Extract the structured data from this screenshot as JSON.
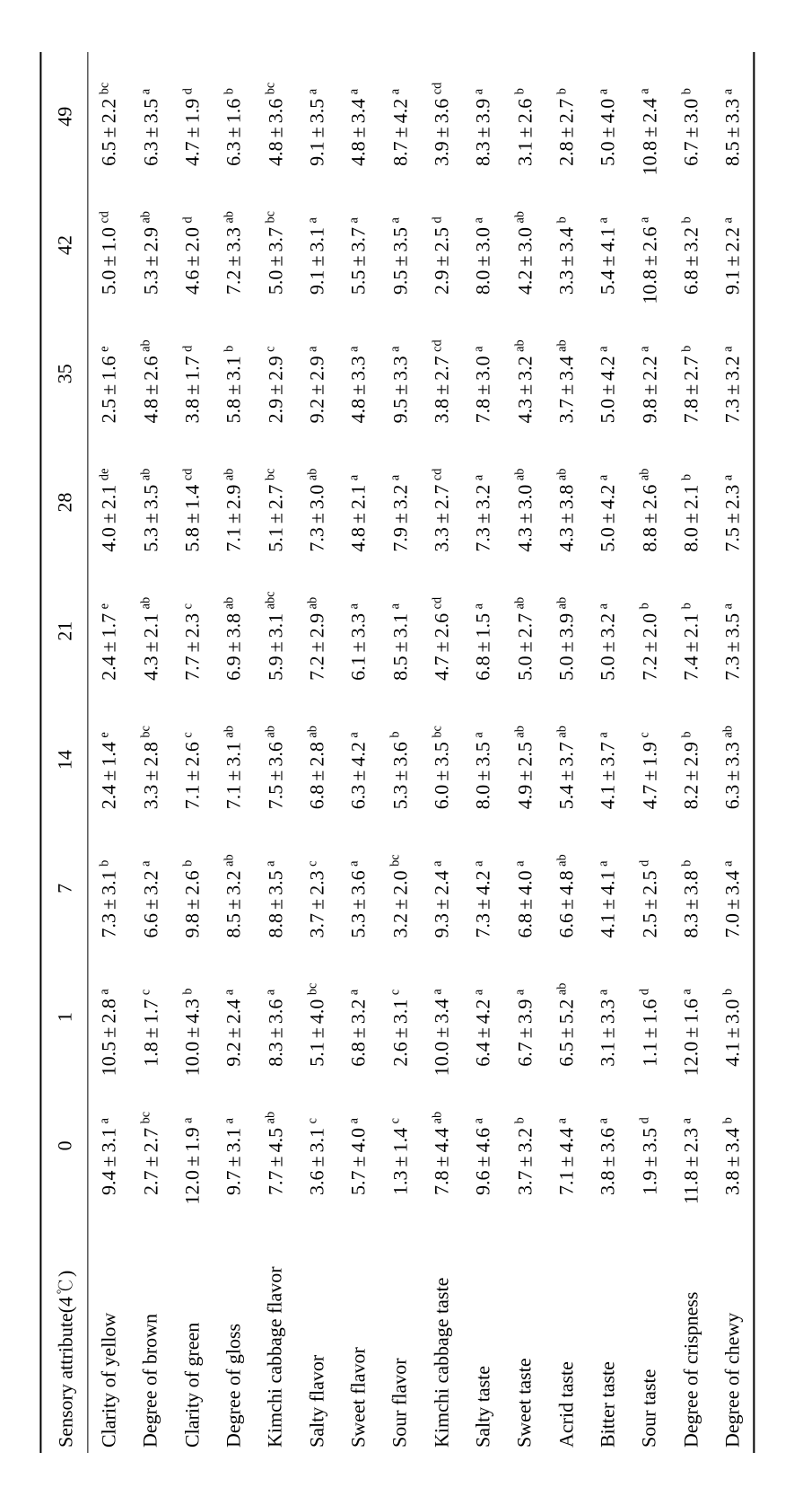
{
  "table": {
    "header_label": "Sensory attribute(4℃)",
    "days": [
      "0",
      "1",
      "7",
      "14",
      "21",
      "28",
      "35",
      "42",
      "49"
    ],
    "rows": [
      {
        "label": "Clarity of yellow",
        "cells": [
          {
            "v": "9.4",
            "s": "3.1",
            "sup": "a"
          },
          {
            "v": "10.5",
            "s": "2.8",
            "sup": "a"
          },
          {
            "v": "7.3",
            "s": "3.1",
            "sup": "b"
          },
          {
            "v": "2.4",
            "s": "1.4",
            "sup": "e"
          },
          {
            "v": "2.4",
            "s": "1.7",
            "sup": "e"
          },
          {
            "v": "4.0",
            "s": "2.1",
            "sup": "de"
          },
          {
            "v": "2.5",
            "s": "1.6",
            "sup": "e"
          },
          {
            "v": "5.0",
            "s": "1.0",
            "sup": "cd"
          },
          {
            "v": "6.5",
            "s": "2.2",
            "sup": "bc"
          }
        ]
      },
      {
        "label": "Degree of brown",
        "cells": [
          {
            "v": "2.7",
            "s": "2.7",
            "sup": "bc"
          },
          {
            "v": "1.8",
            "s": "1.7",
            "sup": "c"
          },
          {
            "v": "6.6",
            "s": "3.2",
            "sup": "a"
          },
          {
            "v": "3.3",
            "s": "2.8",
            "sup": "bc"
          },
          {
            "v": "4.3",
            "s": "2.1",
            "sup": "ab"
          },
          {
            "v": "5.3",
            "s": "3.5",
            "sup": "ab"
          },
          {
            "v": "4.8",
            "s": "2.6",
            "sup": "ab"
          },
          {
            "v": "5.3",
            "s": "2.9",
            "sup": "ab"
          },
          {
            "v": "6.3",
            "s": "3.5",
            "sup": "a"
          }
        ]
      },
      {
        "label": "Clarity of green",
        "cells": [
          {
            "v": "12.0",
            "s": "1.9",
            "sup": "a"
          },
          {
            "v": "10.0",
            "s": "4.3",
            "sup": "b"
          },
          {
            "v": "9.8",
            "s": "2.6",
            "sup": "b"
          },
          {
            "v": "7.1",
            "s": "2.6",
            "sup": "c"
          },
          {
            "v": "7.7",
            "s": "2.3",
            "sup": "c"
          },
          {
            "v": "5.8",
            "s": "1.4",
            "sup": "cd"
          },
          {
            "v": "3.8",
            "s": "1.7",
            "sup": "d"
          },
          {
            "v": "4.6",
            "s": "2.0",
            "sup": "d"
          },
          {
            "v": "4.7",
            "s": "1.9",
            "sup": "d"
          }
        ]
      },
      {
        "label": "Degree of gloss",
        "cells": [
          {
            "v": "9.7",
            "s": "3.1",
            "sup": "a"
          },
          {
            "v": "9.2",
            "s": "2.4",
            "sup": "a"
          },
          {
            "v": "8.5",
            "s": "3.2",
            "sup": "ab"
          },
          {
            "v": "7.1",
            "s": "3.1",
            "sup": "ab"
          },
          {
            "v": "6.9",
            "s": "3.8",
            "sup": "ab"
          },
          {
            "v": "7.1",
            "s": "2.9",
            "sup": "ab"
          },
          {
            "v": "5.8",
            "s": "3.1",
            "sup": "b"
          },
          {
            "v": "7.2",
            "s": "3.3",
            "sup": "ab"
          },
          {
            "v": "6.3",
            "s": "1.6",
            "sup": "b"
          }
        ]
      },
      {
        "label": "Kimchi cabbage flavor",
        "cells": [
          {
            "v": "7.7",
            "s": "4.5",
            "sup": "ab"
          },
          {
            "v": "8.3",
            "s": "3.6",
            "sup": "a"
          },
          {
            "v": "8.8",
            "s": "3.5",
            "sup": "a"
          },
          {
            "v": "7.5",
            "s": "3.6",
            "sup": "ab"
          },
          {
            "v": "5.9",
            "s": "3.1",
            "sup": "abc"
          },
          {
            "v": "5.1",
            "s": "2.7",
            "sup": "bc"
          },
          {
            "v": "2.9",
            "s": "2.9",
            "sup": "c"
          },
          {
            "v": "5.0",
            "s": "3.7",
            "sup": "bc"
          },
          {
            "v": "4.8",
            "s": "3.6",
            "sup": "bc"
          }
        ]
      },
      {
        "label": "Salty flavor",
        "cells": [
          {
            "v": "3.6",
            "s": "3.1",
            "sup": "c"
          },
          {
            "v": "5.1",
            "s": "4.0",
            "sup": "bc"
          },
          {
            "v": "3.7",
            "s": "2.3",
            "sup": "c"
          },
          {
            "v": "6.8",
            "s": "2.8",
            "sup": "ab"
          },
          {
            "v": "7.2",
            "s": "2.9",
            "sup": "ab"
          },
          {
            "v": "7.3",
            "s": "3.0",
            "sup": "ab"
          },
          {
            "v": "9.2",
            "s": "2.9",
            "sup": "a"
          },
          {
            "v": "9.1",
            "s": "3.1",
            "sup": "a"
          },
          {
            "v": "9.1",
            "s": "3.5",
            "sup": "a"
          }
        ]
      },
      {
        "label": "Sweet flavor",
        "cells": [
          {
            "v": "5.7",
            "s": "4.0",
            "sup": "a"
          },
          {
            "v": "6.8",
            "s": "3.2",
            "sup": "a"
          },
          {
            "v": "5.3",
            "s": "3.6",
            "sup": "a"
          },
          {
            "v": "6.3",
            "s": "4.2",
            "sup": "a"
          },
          {
            "v": "6.1",
            "s": "3.3",
            "sup": "a"
          },
          {
            "v": "4.8",
            "s": "2.1",
            "sup": "a"
          },
          {
            "v": "4.8",
            "s": "3.3",
            "sup": "a"
          },
          {
            "v": "5.5",
            "s": "3.7",
            "sup": "a"
          },
          {
            "v": "4.8",
            "s": "3.4",
            "sup": "a"
          }
        ]
      },
      {
        "label": "Sour flavor",
        "cells": [
          {
            "v": "1.3",
            "s": "1.4",
            "sup": "c"
          },
          {
            "v": "2.6",
            "s": "3.1",
            "sup": "c"
          },
          {
            "v": "3.2",
            "s": "2.0",
            "sup": "bc"
          },
          {
            "v": "5.3",
            "s": "3.6",
            "sup": "b"
          },
          {
            "v": "8.5",
            "s": "3.1",
            "sup": "a"
          },
          {
            "v": "7.9",
            "s": "3.2",
            "sup": "a"
          },
          {
            "v": "9.5",
            "s": "3.3",
            "sup": "a"
          },
          {
            "v": "9.5",
            "s": "3.5",
            "sup": "a"
          },
          {
            "v": "8.7",
            "s": "4.2",
            "sup": "a"
          }
        ]
      },
      {
        "label": "Kimchi cabbage taste",
        "cells": [
          {
            "v": "7.8",
            "s": "4.4",
            "sup": "ab"
          },
          {
            "v": "10.0",
            "s": "3.4",
            "sup": "a"
          },
          {
            "v": "9.3",
            "s": "2.4",
            "sup": "a"
          },
          {
            "v": "6.0",
            "s": "3.5",
            "sup": "bc"
          },
          {
            "v": "4.7",
            "s": "2.6",
            "sup": "cd"
          },
          {
            "v": "3.3",
            "s": "2.7",
            "sup": "cd"
          },
          {
            "v": "3.8",
            "s": "2.7",
            "sup": "cd"
          },
          {
            "v": "2.9",
            "s": "2.5",
            "sup": "d"
          },
          {
            "v": "3.9",
            "s": "3.6",
            "sup": "cd"
          }
        ]
      },
      {
        "label": "Salty taste",
        "cells": [
          {
            "v": "9.6",
            "s": "4.6",
            "sup": "a"
          },
          {
            "v": "6.4",
            "s": "4.2",
            "sup": "a"
          },
          {
            "v": "7.3",
            "s": "4.2",
            "sup": "a"
          },
          {
            "v": "8.0",
            "s": "3.5",
            "sup": "a"
          },
          {
            "v": "6.8",
            "s": "1.5",
            "sup": "a"
          },
          {
            "v": "7.3",
            "s": "3.2",
            "sup": "a"
          },
          {
            "v": "7.8",
            "s": "3.0",
            "sup": "a"
          },
          {
            "v": "8.0",
            "s": "3.0",
            "sup": "a"
          },
          {
            "v": "8.3",
            "s": "3.9",
            "sup": "a"
          }
        ]
      },
      {
        "label": "Sweet taste",
        "cells": [
          {
            "v": "3.7",
            "s": "3.2",
            "sup": "b"
          },
          {
            "v": "6.7",
            "s": "3.9",
            "sup": "a"
          },
          {
            "v": "6.8",
            "s": "4.0",
            "sup": "a"
          },
          {
            "v": "4.9",
            "s": "2.5",
            "sup": "ab"
          },
          {
            "v": "5.0",
            "s": "2.7",
            "sup": "ab"
          },
          {
            "v": "4.3",
            "s": "3.0",
            "sup": "ab"
          },
          {
            "v": "4.3",
            "s": "3.2",
            "sup": "ab"
          },
          {
            "v": "4.2",
            "s": "3.0",
            "sup": "ab"
          },
          {
            "v": "3.1",
            "s": "2.6",
            "sup": "b"
          }
        ]
      },
      {
        "label": "Acrid taste",
        "cells": [
          {
            "v": "7.1",
            "s": "4.4",
            "sup": "a"
          },
          {
            "v": "6.5",
            "s": "5.2",
            "sup": "ab"
          },
          {
            "v": "6.6",
            "s": "4.8",
            "sup": "ab"
          },
          {
            "v": "5.4",
            "s": "3.7",
            "sup": "ab"
          },
          {
            "v": "5.0",
            "s": "3.9",
            "sup": "ab"
          },
          {
            "v": "4.3",
            "s": "3.8",
            "sup": "ab"
          },
          {
            "v": "3.7",
            "s": "3.4",
            "sup": "ab"
          },
          {
            "v": "3.3",
            "s": "3.4",
            "sup": "b"
          },
          {
            "v": "2.8",
            "s": "2.7",
            "sup": "b"
          }
        ]
      },
      {
        "label": "Bitter taste",
        "cells": [
          {
            "v": "3.8",
            "s": "3.6",
            "sup": "a"
          },
          {
            "v": "3.1",
            "s": "3.3",
            "sup": "a"
          },
          {
            "v": "4.1",
            "s": "4.1",
            "sup": "a"
          },
          {
            "v": "4.1",
            "s": "3.7",
            "sup": "a"
          },
          {
            "v": "5.0",
            "s": "3.2",
            "sup": "a"
          },
          {
            "v": "5.0",
            "s": "4.2",
            "sup": "a"
          },
          {
            "v": "5.0",
            "s": "4.2",
            "sup": "a"
          },
          {
            "v": "5.4",
            "s": "4.1",
            "sup": "a"
          },
          {
            "v": "5.0",
            "s": "4.0",
            "sup": "a"
          }
        ]
      },
      {
        "label": "Sour taste",
        "cells": [
          {
            "v": "1.9",
            "s": "3.5",
            "sup": "d"
          },
          {
            "v": "1.1",
            "s": "1.6",
            "sup": "d"
          },
          {
            "v": "2.5",
            "s": "2.5",
            "sup": "d"
          },
          {
            "v": "4.7",
            "s": "1.9",
            "sup": "c"
          },
          {
            "v": "7.2",
            "s": "2.0",
            "sup": "b"
          },
          {
            "v": "8.8",
            "s": "2.6",
            "sup": "ab"
          },
          {
            "v": "9.8",
            "s": "2.2",
            "sup": "a"
          },
          {
            "v": "10.8",
            "s": "2.6",
            "sup": "a"
          },
          {
            "v": "10.8",
            "s": "2.4",
            "sup": "a"
          }
        ]
      },
      {
        "label": "Degree of crispness",
        "cells": [
          {
            "v": "11.8",
            "s": "2.3",
            "sup": "a"
          },
          {
            "v": "12.0",
            "s": "1.6",
            "sup": "a"
          },
          {
            "v": "8.3",
            "s": "3.8",
            "sup": "b"
          },
          {
            "v": "8.2",
            "s": "2.9",
            "sup": "b"
          },
          {
            "v": "7.4",
            "s": "2.1",
            "sup": "b"
          },
          {
            "v": "8.0",
            "s": "2.1",
            "sup": "b"
          },
          {
            "v": "7.8",
            "s": "2.7",
            "sup": "b"
          },
          {
            "v": "6.8",
            "s": "3.2",
            "sup": "b"
          },
          {
            "v": "6.7",
            "s": "3.0",
            "sup": "b"
          }
        ]
      },
      {
        "label": "Degree of chewy",
        "cells": [
          {
            "v": "3.8",
            "s": "3.4",
            "sup": "b"
          },
          {
            "v": "4.1",
            "s": "3.0",
            "sup": "b"
          },
          {
            "v": "7.0",
            "s": "3.4",
            "sup": "a"
          },
          {
            "v": "6.3",
            "s": "3.3",
            "sup": "ab"
          },
          {
            "v": "7.3",
            "s": "3.5",
            "sup": "a"
          },
          {
            "v": "7.5",
            "s": "2.3",
            "sup": "a"
          },
          {
            "v": "7.3",
            "s": "3.2",
            "sup": "a"
          },
          {
            "v": "9.1",
            "s": "2.2",
            "sup": "a"
          },
          {
            "v": "8.5",
            "s": "3.3",
            "sup": "a"
          }
        ]
      }
    ]
  }
}
